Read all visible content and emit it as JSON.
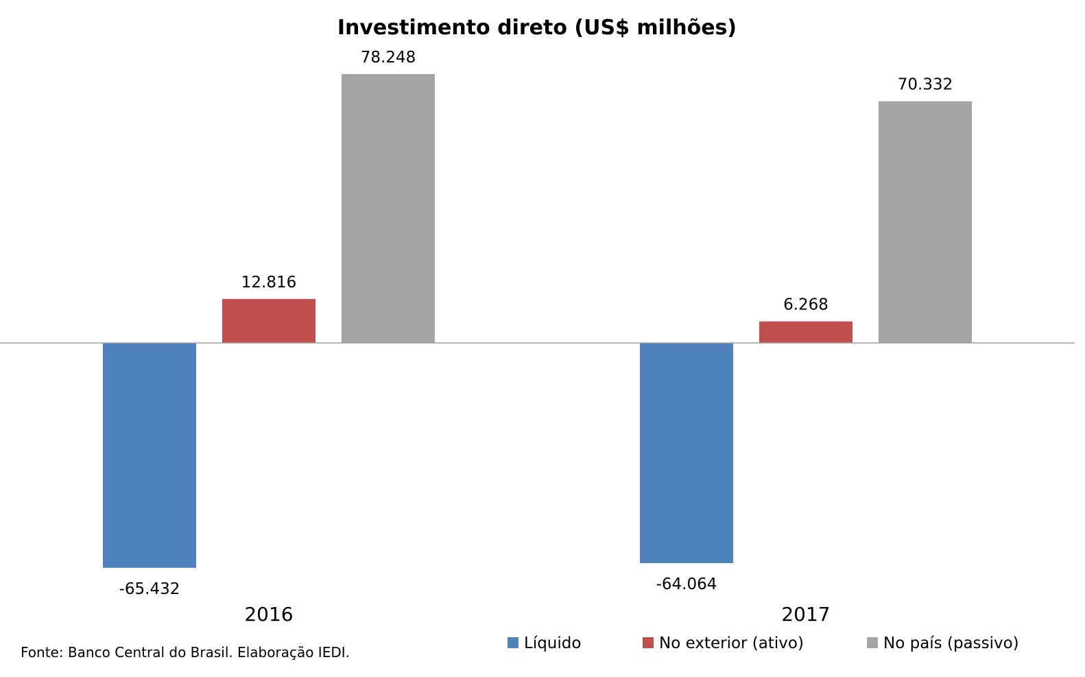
{
  "chart_data": {
    "type": "bar",
    "title": "Investimento direto (US$ milhões)",
    "categories": [
      "2016",
      "2017"
    ],
    "series": [
      {
        "name": "Líquido",
        "color": "#4F81BD",
        "values": [
          -65432,
          -64064
        ],
        "labels": [
          "-65.432",
          "-64.064"
        ]
      },
      {
        "name": "No exterior (ativo)",
        "color": "#C0504D",
        "values": [
          12816,
          6268
        ],
        "labels": [
          "12.816",
          "6.268"
        ]
      },
      {
        "name": "No país (passivo)",
        "color": "#A5A5A5",
        "values": [
          78248,
          70332
        ],
        "labels": [
          "78.248",
          "70.332"
        ]
      }
    ],
    "xlabel": "",
    "ylabel": "",
    "grid": false,
    "legend": "bottom-right",
    "source": "Fonte: Banco Central do Brasil. Elaboração IEDI."
  }
}
